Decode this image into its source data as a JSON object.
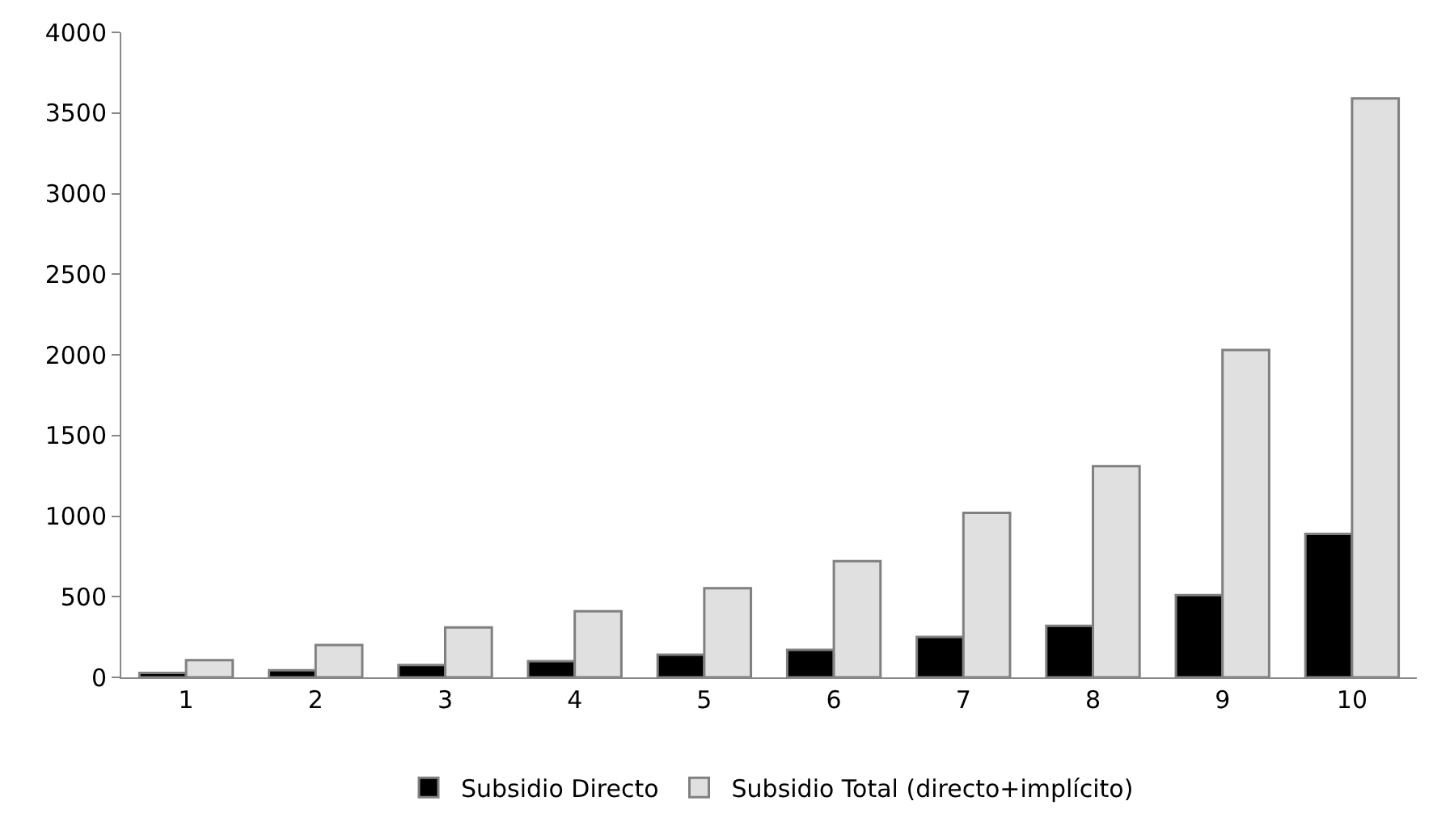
{
  "chart_data": {
    "type": "bar",
    "categories": [
      "1",
      "2",
      "3",
      "4",
      "5",
      "6",
      "7",
      "8",
      "9",
      "10"
    ],
    "series": [
      {
        "name": "Subsidio Directo",
        "color": "#000000",
        "values": [
          27,
          44,
          77,
          100,
          140,
          170,
          250,
          320,
          510,
          890
        ]
      },
      {
        "name": "Subsidio Total (directo+implícito)",
        "color": "#e0e0e0",
        "values": [
          107,
          200,
          310,
          410,
          553,
          720,
          1020,
          1310,
          2030,
          3590
        ]
      }
    ],
    "ylim": [
      0,
      4000
    ],
    "yticks": [
      0,
      500,
      1000,
      1500,
      2000,
      2500,
      3000,
      3500,
      4000
    ],
    "grid": false,
    "legend": "bottom"
  }
}
